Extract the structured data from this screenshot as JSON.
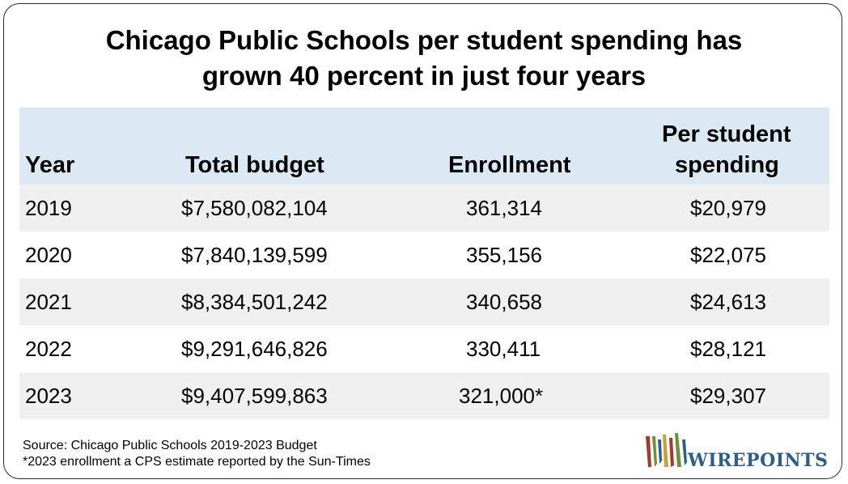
{
  "chart_data": {
    "type": "table",
    "title": "Chicago Public Schools per student spending has grown 40 percent in just four years",
    "title_lines": [
      "Chicago Public Schools per student spending has",
      "grown 40 percent in just four years"
    ],
    "columns": {
      "year": "Year",
      "total_budget": "Total budget",
      "enrollment": "Enrollment",
      "per_student_line1": "Per student",
      "per_student_line2": "spending"
    },
    "rows": [
      {
        "year": "2019",
        "total_budget": "$7,580,082,104",
        "enrollment": "361,314",
        "per_student": "$20,979"
      },
      {
        "year": "2020",
        "total_budget": "$7,840,139,599",
        "enrollment": "355,156",
        "per_student": "$22,075"
      },
      {
        "year": "2021",
        "total_budget": "$8,384,501,242",
        "enrollment": "340,658",
        "per_student": "$24,613"
      },
      {
        "year": "2022",
        "total_budget": "$9,291,646,826",
        "enrollment": "330,411",
        "per_student": "$28,121"
      },
      {
        "year": "2023",
        "total_budget": "$9,407,599,863",
        "enrollment": "321,000*",
        "per_student": "$29,307"
      }
    ]
  },
  "footer": {
    "source": "Source: Chicago Public Schools 2019-2023 Budget",
    "note": "*2023 enrollment a CPS estimate reported by the Sun-Times"
  },
  "logo": {
    "text": "WIREPOINTS",
    "colors": {
      "brand_blue": "#2f5f86",
      "brand_red": "#a33a2c",
      "brand_green": "#6e8f3c",
      "brand_gold": "#c9a13a"
    }
  },
  "colors": {
    "header_bg": "#dce9f5",
    "row_shade": "#f0f0f0",
    "border": "#2b2b2b"
  }
}
